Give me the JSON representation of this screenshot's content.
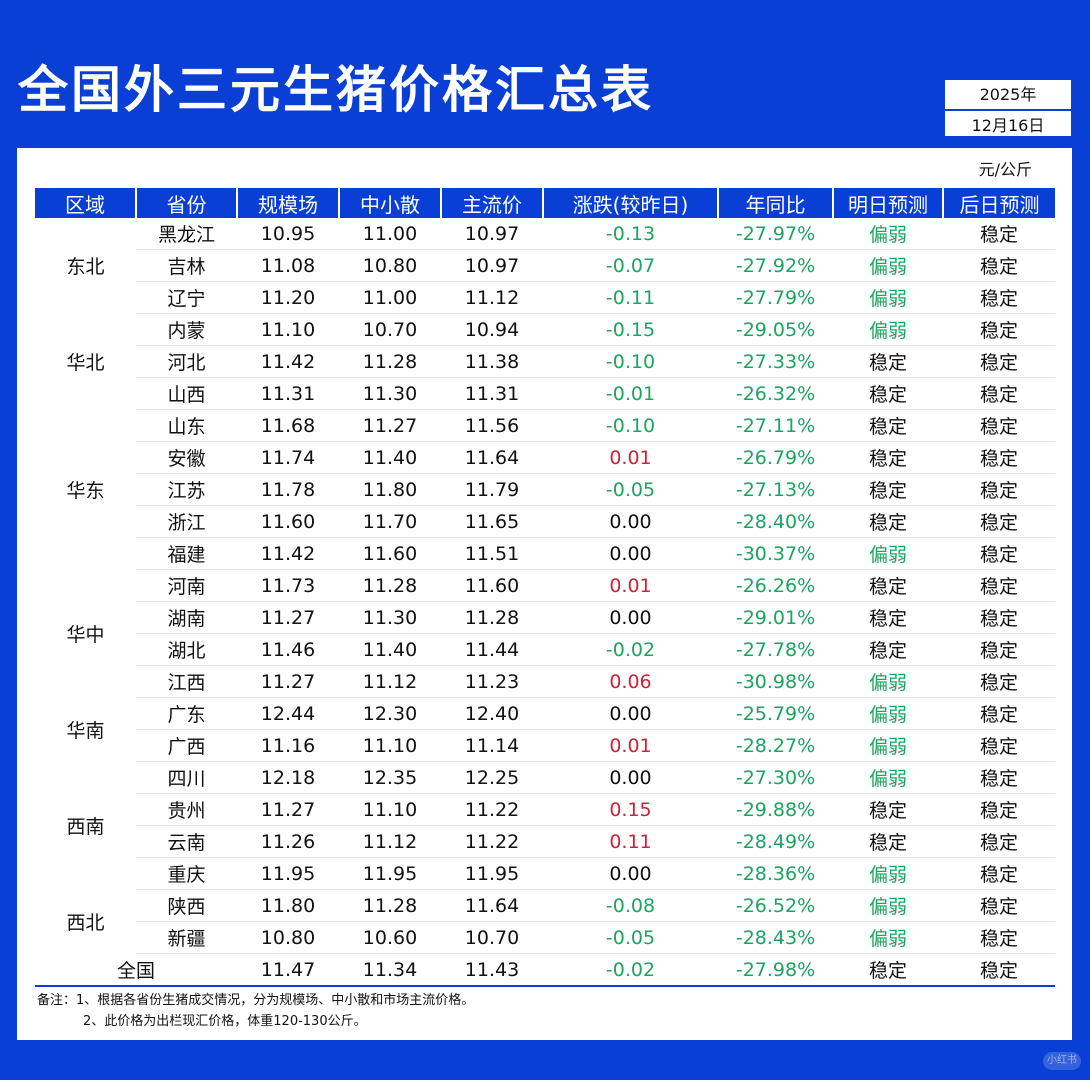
{
  "title": "全国外三元生猪价格汇总表",
  "date": {
    "year": "2025年",
    "month_day": "12月16日"
  },
  "unit": "元/公斤",
  "headers": [
    "区域",
    "省份",
    "规模场",
    "中小散",
    "主流价",
    "涨跌(较昨日)",
    "年同比",
    "明日预测",
    "后日预测"
  ],
  "regions": [
    {
      "name": "东北",
      "rows": [
        {
          "province": "黑龙江",
          "large": "10.95",
          "small": "11.00",
          "main": "10.97",
          "change": "-0.13",
          "yoy": "-27.97%",
          "tomorrow": "偏弱",
          "after": "稳定"
        },
        {
          "province": "吉林",
          "large": "11.08",
          "small": "10.80",
          "main": "10.97",
          "change": "-0.07",
          "yoy": "-27.92%",
          "tomorrow": "偏弱",
          "after": "稳定"
        },
        {
          "province": "辽宁",
          "large": "11.20",
          "small": "11.00",
          "main": "11.12",
          "change": "-0.11",
          "yoy": "-27.79%",
          "tomorrow": "偏弱",
          "after": "稳定"
        }
      ]
    },
    {
      "name": "华北",
      "rows": [
        {
          "province": "内蒙",
          "large": "11.10",
          "small": "10.70",
          "main": "10.94",
          "change": "-0.15",
          "yoy": "-29.05%",
          "tomorrow": "偏弱",
          "after": "稳定"
        },
        {
          "province": "河北",
          "large": "11.42",
          "small": "11.28",
          "main": "11.38",
          "change": "-0.10",
          "yoy": "-27.33%",
          "tomorrow": "稳定",
          "after": "稳定"
        },
        {
          "province": "山西",
          "large": "11.31",
          "small": "11.30",
          "main": "11.31",
          "change": "-0.01",
          "yoy": "-26.32%",
          "tomorrow": "稳定",
          "after": "稳定"
        }
      ]
    },
    {
      "name": "华东",
      "rows": [
        {
          "province": "山东",
          "large": "11.68",
          "small": "11.27",
          "main": "11.56",
          "change": "-0.10",
          "yoy": "-27.11%",
          "tomorrow": "稳定",
          "after": "稳定"
        },
        {
          "province": "安徽",
          "large": "11.74",
          "small": "11.40",
          "main": "11.64",
          "change": "0.01",
          "yoy": "-26.79%",
          "tomorrow": "稳定",
          "after": "稳定"
        },
        {
          "province": "江苏",
          "large": "11.78",
          "small": "11.80",
          "main": "11.79",
          "change": "-0.05",
          "yoy": "-27.13%",
          "tomorrow": "稳定",
          "after": "稳定"
        },
        {
          "province": "浙江",
          "large": "11.60",
          "small": "11.70",
          "main": "11.65",
          "change": "0.00",
          "yoy": "-28.40%",
          "tomorrow": "稳定",
          "after": "稳定"
        },
        {
          "province": "福建",
          "large": "11.42",
          "small": "11.60",
          "main": "11.51",
          "change": "0.00",
          "yoy": "-30.37%",
          "tomorrow": "偏弱",
          "after": "稳定"
        }
      ]
    },
    {
      "name": "华中",
      "rows": [
        {
          "province": "河南",
          "large": "11.73",
          "small": "11.28",
          "main": "11.60",
          "change": "0.01",
          "yoy": "-26.26%",
          "tomorrow": "稳定",
          "after": "稳定"
        },
        {
          "province": "湖南",
          "large": "11.27",
          "small": "11.30",
          "main": "11.28",
          "change": "0.00",
          "yoy": "-29.01%",
          "tomorrow": "稳定",
          "after": "稳定"
        },
        {
          "province": "湖北",
          "large": "11.46",
          "small": "11.40",
          "main": "11.44",
          "change": "-0.02",
          "yoy": "-27.78%",
          "tomorrow": "稳定",
          "after": "稳定"
        },
        {
          "province": "江西",
          "large": "11.27",
          "small": "11.12",
          "main": "11.23",
          "change": "0.06",
          "yoy": "-30.98%",
          "tomorrow": "偏弱",
          "after": "稳定"
        }
      ]
    },
    {
      "name": "华南",
      "rows": [
        {
          "province": "广东",
          "large": "12.44",
          "small": "12.30",
          "main": "12.40",
          "change": "0.00",
          "yoy": "-25.79%",
          "tomorrow": "偏弱",
          "after": "稳定"
        },
        {
          "province": "广西",
          "large": "11.16",
          "small": "11.10",
          "main": "11.14",
          "change": "0.01",
          "yoy": "-28.27%",
          "tomorrow": "偏弱",
          "after": "稳定"
        }
      ]
    },
    {
      "name": "西南",
      "rows": [
        {
          "province": "四川",
          "large": "12.18",
          "small": "12.35",
          "main": "12.25",
          "change": "0.00",
          "yoy": "-27.30%",
          "tomorrow": "偏弱",
          "after": "稳定"
        },
        {
          "province": "贵州",
          "large": "11.27",
          "small": "11.10",
          "main": "11.22",
          "change": "0.15",
          "yoy": "-29.88%",
          "tomorrow": "稳定",
          "after": "稳定"
        },
        {
          "province": "云南",
          "large": "11.26",
          "small": "11.12",
          "main": "11.22",
          "change": "0.11",
          "yoy": "-28.49%",
          "tomorrow": "稳定",
          "after": "稳定"
        },
        {
          "province": "重庆",
          "large": "11.95",
          "small": "11.95",
          "main": "11.95",
          "change": "0.00",
          "yoy": "-28.36%",
          "tomorrow": "偏弱",
          "after": "稳定"
        }
      ]
    },
    {
      "name": "西北",
      "rows": [
        {
          "province": "陕西",
          "large": "11.80",
          "small": "11.28",
          "main": "11.64",
          "change": "-0.08",
          "yoy": "-26.52%",
          "tomorrow": "偏弱",
          "after": "稳定"
        },
        {
          "province": "新疆",
          "large": "10.80",
          "small": "10.60",
          "main": "10.70",
          "change": "-0.05",
          "yoy": "-28.43%",
          "tomorrow": "偏弱",
          "after": "稳定"
        }
      ]
    }
  ],
  "total": {
    "label": "全国",
    "large": "11.47",
    "small": "11.34",
    "main": "11.43",
    "change": "-0.02",
    "yoy": "-27.98%",
    "tomorrow": "稳定",
    "after": "稳定"
  },
  "notes": [
    "备注：1、根据各省份生猪成交情况，分为规模场、中小散和市场主流价格。",
    "2、此价格为出栏现汇价格，体重120-130公斤。"
  ],
  "watermark": "小红书",
  "colors": {
    "brand_blue": "#0a3fd6",
    "down_green": "#1aa660",
    "up_red": "#d0203a"
  }
}
